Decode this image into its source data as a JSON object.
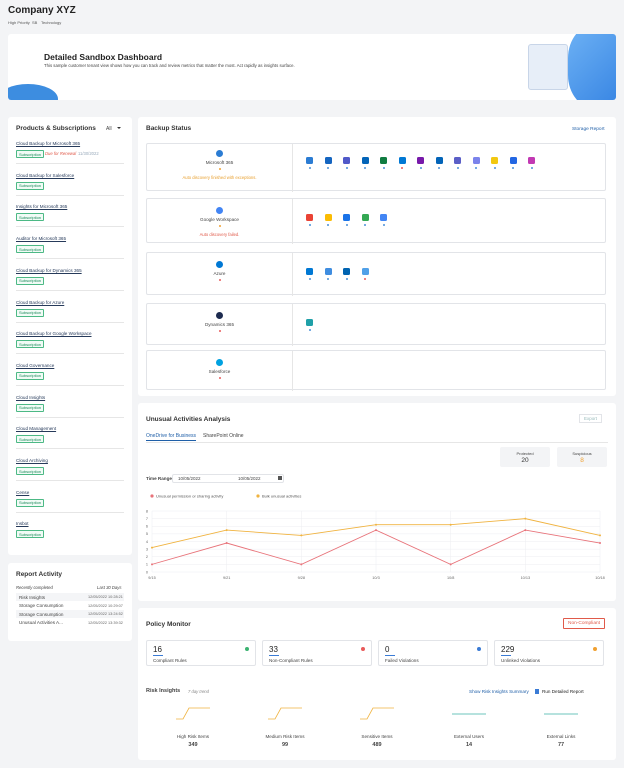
{
  "header": {
    "title": "Company XYZ",
    "tags": [
      "High Priority",
      "SB",
      "Technology"
    ]
  },
  "banner": {
    "title": "Detailed Sandbox Dashboard",
    "description": "This sample customer tenant view shows how you can track and review metrics that matter the most. Act rapidly as insights surface."
  },
  "products": {
    "title": "Products & Subscriptions",
    "filter": "All",
    "items": [
      {
        "name": "Cloud Backup for Microsoft 365",
        "badge": "Subscription",
        "status": "Due for Renewal",
        "date": "11/30/2022"
      },
      {
        "name": "Cloud Backup for Salesforce",
        "badge": "Subscription"
      },
      {
        "name": "Insights for Microsoft 365",
        "badge": "Subscription"
      },
      {
        "name": "Auditor for Microsoft 365",
        "badge": "Subscription"
      },
      {
        "name": "Cloud Backup for Dynamics 365",
        "badge": "Subscription"
      },
      {
        "name": "Cloud Backup for Azure",
        "badge": "Subscription"
      },
      {
        "name": "Cloud Backup for Google Workspace",
        "badge": "Subscription"
      },
      {
        "name": "Cloud Governance",
        "badge": "Subscription"
      },
      {
        "name": "Cloud Insights",
        "badge": "Subscription"
      },
      {
        "name": "Cloud Management",
        "badge": "Subscription"
      },
      {
        "name": "Cloud Archiving",
        "badge": "Subscription"
      },
      {
        "name": "Cense",
        "badge": "Subscription"
      },
      {
        "name": "Insbot",
        "badge": "Subscription"
      }
    ]
  },
  "report_activity": {
    "title": "Report Activity",
    "subtitle": "Recently completed",
    "range": "Last 30 Days",
    "rows": [
      [
        "Risk Insights",
        "12/05/2022 10:28:21"
      ],
      [
        "Storage Consumption",
        "12/05/2022 10:29:07"
      ],
      [
        "Storage Consumption",
        "12/05/2022 13:24:52"
      ],
      [
        "Unusual Activities A...",
        "12/05/2022 13:39:32"
      ]
    ]
  },
  "backup_status": {
    "title": "Backup Status",
    "link": "Storage Report",
    "services": [
      {
        "name": "Microsoft 365",
        "message": "Auto discovery finished with exceptions."
      },
      {
        "name": "Google Workspace",
        "message": "Auto discovery failed."
      },
      {
        "name": "Azure"
      },
      {
        "name": "Dynamics 365"
      },
      {
        "name": "Salesforce"
      }
    ]
  },
  "unusual": {
    "title": "Unusual Activities Analysis",
    "export": "Export",
    "tabs": [
      "OneDrive for Business",
      "SharePoint Online"
    ],
    "stats": [
      {
        "label": "Protected",
        "value": 20
      },
      {
        "label": "Suspicious",
        "value": 8
      }
    ],
    "time_range": {
      "label": "Time Range",
      "from": "10/05/2022",
      "to": "10/05/2022"
    },
    "chart": {
      "type": "line",
      "x": [
        "9/15",
        "9/21",
        "9/28",
        "10/3",
        "10/8",
        "10/13",
        "10/18"
      ],
      "series": [
        {
          "name": "Unusual permission or sharing activity",
          "color": "#e8737a",
          "values": [
            1,
            3.8,
            1,
            5.5,
            1,
            5.5,
            3.8
          ]
        },
        {
          "name": "Bulk unusual activities",
          "color": "#f0b340",
          "values": [
            3.2,
            5.5,
            4.8,
            6.2,
            6.2,
            7,
            4.8
          ]
        }
      ],
      "ylim": [
        0,
        8
      ],
      "yticks": [
        0,
        1,
        2,
        3,
        4,
        5,
        6,
        7,
        8
      ],
      "grid": true
    }
  },
  "policy": {
    "title": "Policy Monitor",
    "button": "Non-Compliant",
    "cards": [
      {
        "value": 16,
        "label": "Compliant Rules"
      },
      {
        "value": 33,
        "label": "Non-Compliant Rules"
      },
      {
        "value": 0,
        "label": "Failed Violations"
      },
      {
        "value": 229,
        "label": "Unlinked Violations"
      }
    ]
  },
  "risk": {
    "title": "Risk Insights",
    "subtitle": "7 day trend",
    "links": [
      "Show Risk Insights Summary",
      "Run Detailed Report"
    ],
    "items": [
      {
        "label": "High Risk Items",
        "value": 349
      },
      {
        "label": "Medium Risk Items",
        "value": 99
      },
      {
        "label": "Sensitive Items",
        "value": 489
      },
      {
        "label": "External Users",
        "value": 14
      },
      {
        "label": "External Links",
        "value": 77
      }
    ]
  }
}
